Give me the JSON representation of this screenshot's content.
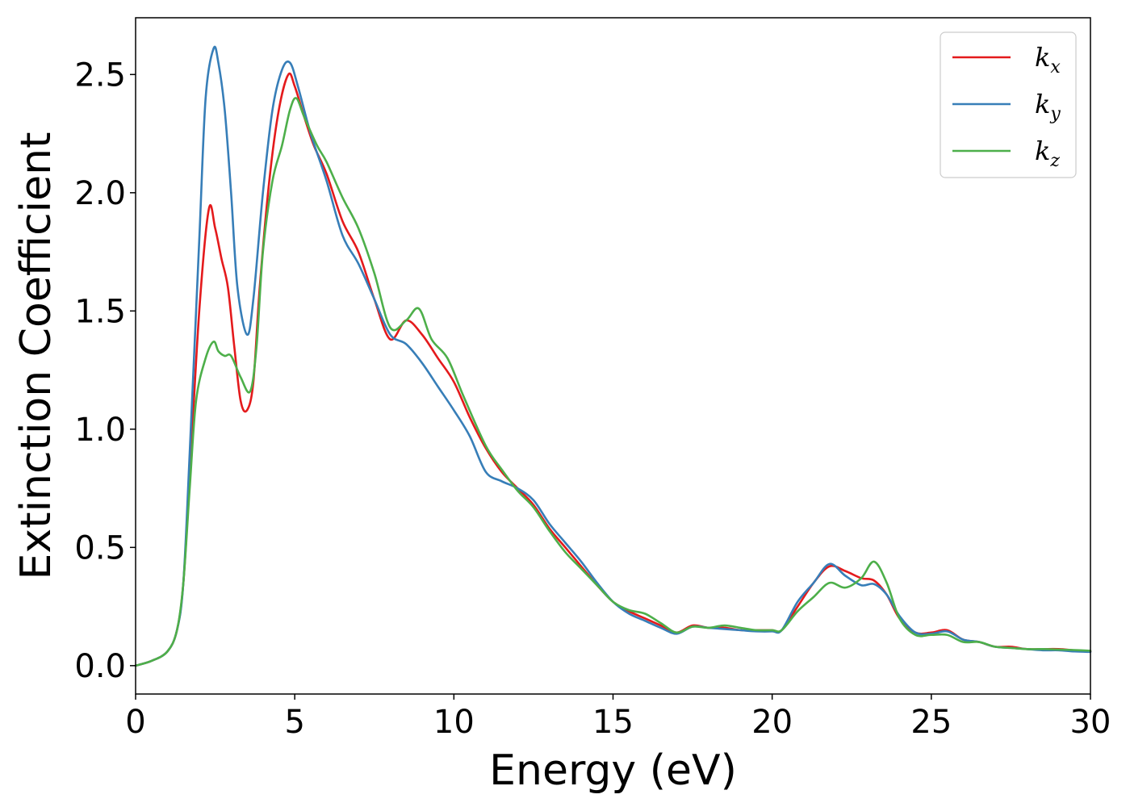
{
  "chart_data": {
    "type": "line",
    "title": "",
    "xlabel": "Energy (eV)",
    "ylabel": "Extinction Coefficient",
    "xlim": [
      0,
      30
    ],
    "ylim": [
      -0.12,
      2.74
    ],
    "xticks": [
      0,
      5,
      10,
      15,
      20,
      25,
      30
    ],
    "xtick_labels": [
      "0",
      "5",
      "10",
      "15",
      "20",
      "25",
      "30"
    ],
    "yticks": [
      0.0,
      0.5,
      1.0,
      1.5,
      2.0,
      2.5
    ],
    "ytick_labels": [
      "0.0",
      "0.5",
      "1.0",
      "1.5",
      "2.0",
      "2.5"
    ],
    "grid": false,
    "legend_position": "top-right",
    "series": [
      {
        "name": "k_x",
        "label_base": "k",
        "label_sub": "x",
        "color": "#e41a1c",
        "points": [
          [
            0,
            0
          ],
          [
            0.5,
            0.02
          ],
          [
            1.0,
            0.06
          ],
          [
            1.3,
            0.15
          ],
          [
            1.5,
            0.35
          ],
          [
            1.7,
            0.8
          ],
          [
            2.0,
            1.5
          ],
          [
            2.3,
            1.93
          ],
          [
            2.5,
            1.85
          ],
          [
            2.7,
            1.72
          ],
          [
            2.9,
            1.6
          ],
          [
            3.1,
            1.35
          ],
          [
            3.3,
            1.12
          ],
          [
            3.5,
            1.08
          ],
          [
            3.7,
            1.2
          ],
          [
            3.9,
            1.6
          ],
          [
            4.2,
            2.05
          ],
          [
            4.5,
            2.35
          ],
          [
            4.8,
            2.5
          ],
          [
            5.0,
            2.45
          ],
          [
            5.3,
            2.32
          ],
          [
            5.6,
            2.2
          ],
          [
            6.0,
            2.08
          ],
          [
            6.5,
            1.88
          ],
          [
            7.0,
            1.75
          ],
          [
            7.5,
            1.55
          ],
          [
            8.0,
            1.38
          ],
          [
            8.5,
            1.46
          ],
          [
            9.0,
            1.4
          ],
          [
            9.5,
            1.3
          ],
          [
            10.0,
            1.2
          ],
          [
            10.5,
            1.05
          ],
          [
            11.0,
            0.92
          ],
          [
            11.5,
            0.82
          ],
          [
            12.0,
            0.75
          ],
          [
            12.5,
            0.68
          ],
          [
            13.0,
            0.58
          ],
          [
            13.5,
            0.5
          ],
          [
            14.0,
            0.42
          ],
          [
            14.5,
            0.34
          ],
          [
            15.0,
            0.27
          ],
          [
            15.5,
            0.23
          ],
          [
            16.0,
            0.2
          ],
          [
            16.5,
            0.17
          ],
          [
            17.0,
            0.14
          ],
          [
            17.5,
            0.17
          ],
          [
            18.0,
            0.16
          ],
          [
            18.5,
            0.16
          ],
          [
            19.0,
            0.15
          ],
          [
            19.5,
            0.15
          ],
          [
            20.0,
            0.15
          ],
          [
            20.3,
            0.15
          ],
          [
            20.8,
            0.25
          ],
          [
            21.3,
            0.35
          ],
          [
            21.8,
            0.42
          ],
          [
            22.3,
            0.4
          ],
          [
            22.8,
            0.37
          ],
          [
            23.2,
            0.36
          ],
          [
            23.6,
            0.3
          ],
          [
            24.0,
            0.2
          ],
          [
            24.5,
            0.14
          ],
          [
            25.0,
            0.14
          ],
          [
            25.5,
            0.15
          ],
          [
            26.0,
            0.11
          ],
          [
            26.5,
            0.1
          ],
          [
            27.0,
            0.08
          ],
          [
            27.5,
            0.08
          ],
          [
            28.0,
            0.07
          ],
          [
            28.5,
            0.07
          ],
          [
            29.0,
            0.07
          ],
          [
            29.5,
            0.065
          ],
          [
            30.0,
            0.06
          ]
        ]
      },
      {
        "name": "k_y",
        "label_base": "k",
        "label_sub": "y",
        "color": "#377eb8",
        "points": [
          [
            0,
            0
          ],
          [
            0.5,
            0.02
          ],
          [
            1.0,
            0.06
          ],
          [
            1.3,
            0.15
          ],
          [
            1.5,
            0.35
          ],
          [
            1.7,
            0.9
          ],
          [
            2.0,
            1.8
          ],
          [
            2.2,
            2.4
          ],
          [
            2.45,
            2.61
          ],
          [
            2.6,
            2.55
          ],
          [
            2.8,
            2.35
          ],
          [
            3.0,
            2.0
          ],
          [
            3.2,
            1.6
          ],
          [
            3.5,
            1.4
          ],
          [
            3.7,
            1.55
          ],
          [
            4.0,
            2.0
          ],
          [
            4.3,
            2.35
          ],
          [
            4.6,
            2.52
          ],
          [
            4.85,
            2.55
          ],
          [
            5.1,
            2.45
          ],
          [
            5.5,
            2.25
          ],
          [
            6.0,
            2.05
          ],
          [
            6.5,
            1.82
          ],
          [
            7.0,
            1.7
          ],
          [
            7.5,
            1.55
          ],
          [
            8.0,
            1.4
          ],
          [
            8.5,
            1.36
          ],
          [
            9.0,
            1.28
          ],
          [
            9.5,
            1.18
          ],
          [
            10.0,
            1.08
          ],
          [
            10.5,
            0.97
          ],
          [
            11.0,
            0.82
          ],
          [
            11.5,
            0.78
          ],
          [
            12.0,
            0.75
          ],
          [
            12.5,
            0.7
          ],
          [
            13.0,
            0.6
          ],
          [
            13.5,
            0.52
          ],
          [
            14.0,
            0.44
          ],
          [
            14.5,
            0.35
          ],
          [
            15.0,
            0.27
          ],
          [
            15.5,
            0.22
          ],
          [
            16.0,
            0.19
          ],
          [
            16.5,
            0.16
          ],
          [
            17.0,
            0.135
          ],
          [
            17.5,
            0.165
          ],
          [
            18.0,
            0.16
          ],
          [
            18.5,
            0.155
          ],
          [
            19.0,
            0.15
          ],
          [
            19.5,
            0.145
          ],
          [
            20.0,
            0.145
          ],
          [
            20.3,
            0.15
          ],
          [
            20.8,
            0.27
          ],
          [
            21.3,
            0.35
          ],
          [
            21.8,
            0.43
          ],
          [
            22.3,
            0.38
          ],
          [
            22.8,
            0.34
          ],
          [
            23.2,
            0.345
          ],
          [
            23.6,
            0.3
          ],
          [
            24.0,
            0.21
          ],
          [
            24.5,
            0.14
          ],
          [
            25.0,
            0.135
          ],
          [
            25.5,
            0.145
          ],
          [
            26.0,
            0.11
          ],
          [
            26.5,
            0.1
          ],
          [
            27.0,
            0.08
          ],
          [
            27.5,
            0.075
          ],
          [
            28.0,
            0.07
          ],
          [
            28.5,
            0.065
          ],
          [
            29.0,
            0.065
          ],
          [
            29.5,
            0.06
          ],
          [
            30.0,
            0.058
          ]
        ]
      },
      {
        "name": "k_z",
        "label_base": "k",
        "label_sub": "z",
        "color": "#4daf4a",
        "points": [
          [
            0,
            0
          ],
          [
            0.5,
            0.02
          ],
          [
            1.0,
            0.06
          ],
          [
            1.3,
            0.15
          ],
          [
            1.5,
            0.35
          ],
          [
            1.7,
            0.75
          ],
          [
            1.9,
            1.12
          ],
          [
            2.2,
            1.3
          ],
          [
            2.45,
            1.37
          ],
          [
            2.6,
            1.33
          ],
          [
            2.8,
            1.31
          ],
          [
            3.0,
            1.31
          ],
          [
            3.3,
            1.22
          ],
          [
            3.6,
            1.16
          ],
          [
            3.8,
            1.35
          ],
          [
            4.0,
            1.75
          ],
          [
            4.3,
            2.05
          ],
          [
            4.6,
            2.2
          ],
          [
            4.85,
            2.35
          ],
          [
            5.05,
            2.4
          ],
          [
            5.3,
            2.32
          ],
          [
            5.7,
            2.2
          ],
          [
            6.0,
            2.13
          ],
          [
            6.5,
            1.98
          ],
          [
            7.0,
            1.85
          ],
          [
            7.5,
            1.66
          ],
          [
            8.0,
            1.43
          ],
          [
            8.5,
            1.46
          ],
          [
            8.9,
            1.51
          ],
          [
            9.3,
            1.38
          ],
          [
            9.8,
            1.3
          ],
          [
            10.3,
            1.14
          ],
          [
            11.0,
            0.93
          ],
          [
            11.5,
            0.83
          ],
          [
            12.0,
            0.74
          ],
          [
            12.5,
            0.67
          ],
          [
            13.0,
            0.57
          ],
          [
            13.5,
            0.48
          ],
          [
            14.0,
            0.41
          ],
          [
            14.5,
            0.34
          ],
          [
            15.0,
            0.27
          ],
          [
            15.5,
            0.235
          ],
          [
            16.0,
            0.22
          ],
          [
            16.5,
            0.18
          ],
          [
            17.0,
            0.14
          ],
          [
            17.5,
            0.165
          ],
          [
            18.0,
            0.16
          ],
          [
            18.5,
            0.17
          ],
          [
            19.0,
            0.16
          ],
          [
            19.5,
            0.15
          ],
          [
            20.0,
            0.15
          ],
          [
            20.3,
            0.15
          ],
          [
            20.8,
            0.23
          ],
          [
            21.3,
            0.29
          ],
          [
            21.8,
            0.35
          ],
          [
            22.3,
            0.33
          ],
          [
            22.8,
            0.37
          ],
          [
            23.2,
            0.44
          ],
          [
            23.6,
            0.35
          ],
          [
            24.0,
            0.2
          ],
          [
            24.5,
            0.13
          ],
          [
            25.0,
            0.13
          ],
          [
            25.5,
            0.13
          ],
          [
            26.0,
            0.1
          ],
          [
            26.5,
            0.1
          ],
          [
            27.0,
            0.08
          ],
          [
            27.5,
            0.075
          ],
          [
            28.0,
            0.07
          ],
          [
            28.5,
            0.07
          ],
          [
            29.0,
            0.068
          ],
          [
            29.5,
            0.066
          ],
          [
            30.0,
            0.063
          ]
        ]
      }
    ]
  }
}
